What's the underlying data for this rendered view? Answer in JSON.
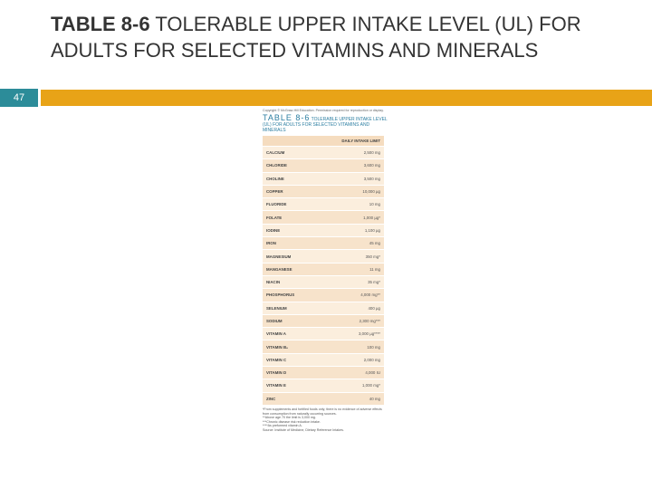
{
  "header": {
    "title_bold": "TABLE 8-6",
    "title": "TOLERABLE UPPER INTAKE LEVEL (UL) FOR ADULTS FOR SELECTED VITAMINS AND MINERALS",
    "slide_number": "47"
  },
  "figure": {
    "copyright": "Copyright © McGraw-Hill Education. Permission required for reproduction or display.",
    "table_label": "TABLE 8-6",
    "table_title": "TOLERABLE UPPER INTAKE LEVEL (UL) FOR ADULTS FOR SELECTED VITAMINS AND MINERALS",
    "column_header": "DAILY INTAKE LIMIT",
    "rows": [
      [
        "CALCIUM",
        "2,500 mg"
      ],
      [
        "CHLORIDE",
        "3,600 mg"
      ],
      [
        "CHOLINE",
        "3,500 mg"
      ],
      [
        "COPPER",
        "10,000 µg"
      ],
      [
        "FLUORIDE",
        "10 mg"
      ],
      [
        "FOLATE",
        "1,000 µg*"
      ],
      [
        "IODINE",
        "1,100 µg"
      ],
      [
        "IRON",
        "45 mg"
      ],
      [
        "MAGNESIUM",
        "350 mg*"
      ],
      [
        "MANGANESE",
        "11 mg"
      ],
      [
        "NIACIN",
        "35 mg*"
      ],
      [
        "PHOSPHORUS",
        "4,000 mg**"
      ],
      [
        "SELENIUM",
        "400 µg"
      ],
      [
        "SODIUM",
        "2,300 mg***"
      ],
      [
        "VITAMIN A",
        "3,000 µg****"
      ],
      [
        "VITAMIN B₆",
        "100 mg"
      ],
      [
        "VITAMIN C",
        "2,000 mg"
      ],
      [
        "VITAMIN D",
        "4,000 IU"
      ],
      [
        "VITAMIN E",
        "1,000 mg*"
      ],
      [
        "ZINC",
        "40 mg"
      ]
    ],
    "notes": [
      "*From supplements and fortified foods only; there is no evidence of adverse effects from consumption from naturally occurring sources.",
      "**Above age 70 the limit is 3,000 mg.",
      "***Chronic disease risk reduction intake.",
      "****As preformed vitamin A.",
      "Source: Institute of Medicine, Dietary Reference Intakes."
    ]
  }
}
